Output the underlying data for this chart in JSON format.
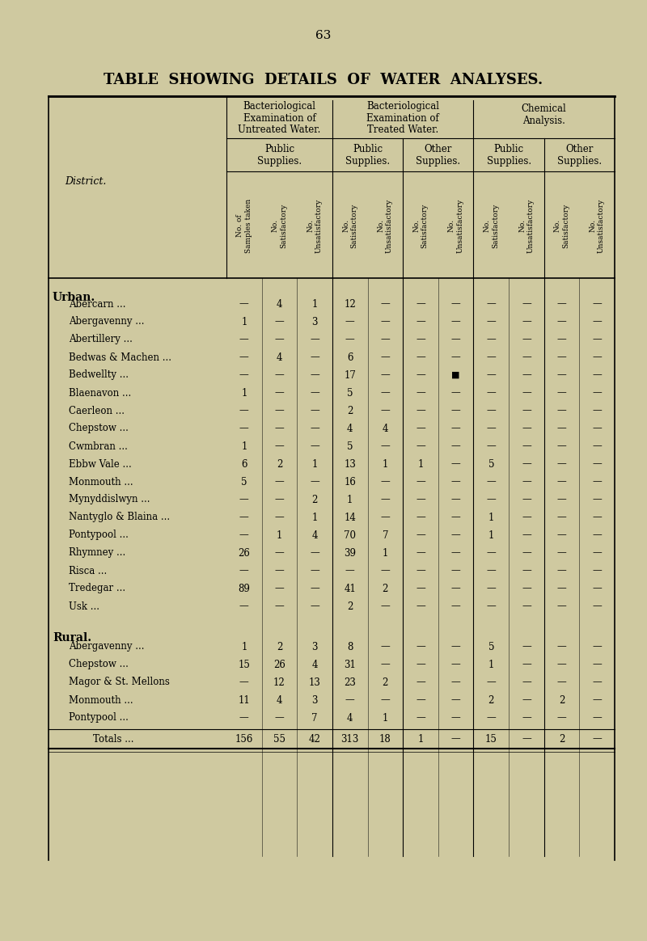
{
  "page_number": "63",
  "title": "TABLE  SHOWING  DETAILS  OF  WATER  ANALYSES.",
  "bg_color": "#cfc9a0",
  "section_headers": {
    "bact_untreated": "Bacteriological\nExamination of\nUntreated Water.",
    "bact_treated": "Bacteriological\nExamination of\nTreated Water.",
    "chemical": "Chemical\nAnalysis."
  },
  "sub_headers": {
    "public": "Public\nSupplies.",
    "other": "Other\nSupplies."
  },
  "col_headers_rotated": [
    "No. of\nSamples taken",
    "No.\nSatisfactory",
    "No.\nUnsatisfactory",
    "No.\nSatisfactory",
    "No.\nUnsatisfactory",
    "No.\nSatisfactory",
    "No.\nUnsatisfactory",
    "No.\nSatisfactory",
    "No.\nUnsatisfactory",
    "No.\nSatisfactory",
    "No.\nUnsatisfactory"
  ],
  "district_label": "District.",
  "urban_label": "Urban.",
  "rural_label": "Rural.",
  "rows": [
    {
      "name": "Abercarn",
      "dots": "...",
      "type": "urban",
      "data": [
        "—",
        "4",
        "1",
        "12",
        "—",
        "—",
        "—",
        "—",
        "—",
        "—",
        "—"
      ]
    },
    {
      "name": "Abergavenny",
      "dots": "...",
      "type": "urban",
      "data": [
        "1",
        "—",
        "3",
        "—",
        "—",
        "—",
        "—",
        "—",
        "—",
        "—",
        "—"
      ]
    },
    {
      "name": "Abertillery ...",
      "dots": "...",
      "type": "urban",
      "data": [
        "—",
        "—",
        "—",
        "—",
        "—",
        "—",
        "—",
        "—",
        "—",
        "—",
        "—"
      ]
    },
    {
      "name": "Bedwas & Machen ...",
      "dots": "",
      "type": "urban",
      "data": [
        "—",
        "4",
        "—",
        "6",
        "—",
        "—",
        "—",
        "—",
        "—",
        "—",
        "—"
      ]
    },
    {
      "name": "Bedwellty",
      "dots": "...",
      "type": "urban",
      "data": [
        "—",
        "—",
        "—",
        "17",
        "—",
        "—",
        "■",
        "—",
        "—",
        "—",
        "—"
      ]
    },
    {
      "name": "Blaenavon",
      "dots": "...",
      "type": "urban",
      "data": [
        "1",
        "—",
        "—",
        "5",
        "—",
        "—",
        "—",
        "—",
        "—",
        "—",
        "—"
      ]
    },
    {
      "name": "Caerleon",
      "dots": "...",
      "type": "urban",
      "data": [
        "—",
        "—",
        "—",
        "2",
        "—",
        "—",
        "—",
        "—",
        "—",
        "—",
        "—"
      ]
    },
    {
      "name": "Chepstow",
      "dots": "...",
      "type": "urban",
      "data": [
        "—",
        "—",
        "—",
        "4",
        "4",
        "—",
        "—",
        "—",
        "—",
        "—",
        "—"
      ]
    },
    {
      "name": "Cwmbran",
      "dots": "...",
      "type": "urban",
      "data": [
        "1",
        "—",
        "—",
        "5",
        "—",
        "—",
        "—",
        "—",
        "—",
        "—",
        "—"
      ]
    },
    {
      "name": "Ebbw Vale ...",
      "dots": "...",
      "type": "urban",
      "data": [
        "6",
        "2",
        "1",
        "13",
        "1",
        "1",
        "—",
        "5",
        "—",
        "—",
        "—"
      ]
    },
    {
      "name": "Monmouth ...",
      "dots": "...",
      "type": "urban",
      "data": [
        "5",
        "—",
        "—",
        "16",
        "—",
        "—",
        "—",
        "—",
        "—",
        "—",
        "—"
      ]
    },
    {
      "name": "Mynyddislwyn",
      "dots": "...",
      "type": "urban",
      "data": [
        "—",
        "—",
        "2",
        "1",
        "—",
        "—",
        "—",
        "—",
        "—",
        "—",
        "—"
      ]
    },
    {
      "name": "Nantyglo & Blaina ...",
      "dots": "",
      "type": "urban",
      "data": [
        "—",
        "—",
        "1",
        "14",
        "—",
        "—",
        "—",
        "1",
        "—",
        "—",
        "—"
      ]
    },
    {
      "name": "Pontypool",
      "dots": "...",
      "type": "urban",
      "data": [
        "—",
        "1",
        "4",
        "70",
        "7",
        "—",
        "—",
        "1",
        "—",
        "—",
        "—"
      ]
    },
    {
      "name": "Rhymney",
      "dots": "...",
      "type": "urban",
      "data": [
        "26",
        "—",
        "—",
        "39",
        "1",
        "—",
        "—",
        "—",
        "—",
        "—",
        "—"
      ]
    },
    {
      "name": "Risca",
      "dots": "...",
      "type": "urban",
      "data": [
        "—",
        "—",
        "—",
        "—",
        "—",
        "—",
        "—",
        "—",
        "—",
        "—",
        "—"
      ]
    },
    {
      "name": "Tredegar",
      "dots": "...",
      "type": "urban",
      "data": [
        "89",
        "—",
        "—",
        "41",
        "2",
        "—",
        "—",
        "—",
        "—",
        "—",
        "—"
      ]
    },
    {
      "name": "Usk ...",
      "dots": "...",
      "type": "urban",
      "data": [
        "—",
        "—",
        "—",
        "2",
        "—",
        "—",
        "—",
        "—",
        "—",
        "—",
        "—"
      ]
    },
    {
      "name": "Abergavenny",
      "dots": "...",
      "type": "rural",
      "data": [
        "1",
        "2",
        "3",
        "8",
        "—",
        "—",
        "—",
        "5",
        "—",
        "—",
        "—"
      ]
    },
    {
      "name": "Chepstow ...",
      "dots": "...",
      "type": "rural",
      "data": [
        "15",
        "26",
        "4",
        "31",
        "—",
        "—",
        "—",
        "1",
        "—",
        "—",
        "—"
      ]
    },
    {
      "name": "Magor & St. Mellons",
      "dots": "",
      "type": "rural",
      "data": [
        "—",
        "12",
        "13",
        "23",
        "2",
        "—",
        "—",
        "—",
        "—",
        "—",
        "—"
      ]
    },
    {
      "name": "Monmouth ...",
      "dots": "...",
      "type": "rural",
      "data": [
        "11",
        "4",
        "3",
        "—",
        "—",
        "—",
        "—",
        "2",
        "—",
        "2",
        "—"
      ]
    },
    {
      "name": "Pontypool ...",
      "dots": "...",
      "type": "rural",
      "data": [
        "—",
        "—",
        "7",
        "4",
        "1",
        "—",
        "—",
        "—",
        "—",
        "—",
        "—"
      ]
    },
    {
      "name": "Totals ...",
      "dots": "...",
      "type": "total",
      "data": [
        "156",
        "55",
        "42",
        "313",
        "18",
        "1",
        "—",
        "15",
        "—",
        "2",
        "—"
      ]
    }
  ]
}
